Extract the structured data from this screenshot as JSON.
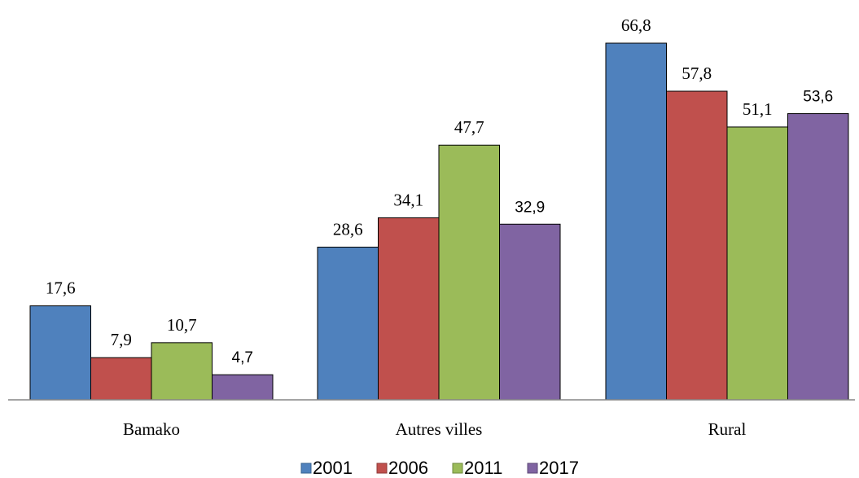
{
  "chart_data": {
    "type": "bar",
    "categories": [
      "Bamako",
      "Autres villes",
      "Rural"
    ],
    "series": [
      {
        "name": "2001",
        "values": [
          17.6,
          28.6,
          66.8
        ],
        "labels": [
          "17,6",
          "28,6",
          "66,8"
        ],
        "color": "#4F81BD"
      },
      {
        "name": "2006",
        "values": [
          7.9,
          34.1,
          57.8
        ],
        "labels": [
          "7,9",
          "34,1",
          "57,8"
        ],
        "color": "#C0504D"
      },
      {
        "name": "2011",
        "values": [
          10.7,
          47.7,
          51.1
        ],
        "labels": [
          "10,7",
          "47,7",
          "51,1"
        ],
        "color": "#9BBB59"
      },
      {
        "name": "2017",
        "values": [
          4.7,
          32.9,
          53.6
        ],
        "labels": [
          "4,7",
          "32,9",
          "53,6"
        ],
        "color": "#8064A2"
      }
    ],
    "title": "",
    "xlabel": "",
    "ylabel": "",
    "ylim": [
      0,
      72
    ],
    "grid": false,
    "legend_position": "bottom"
  }
}
